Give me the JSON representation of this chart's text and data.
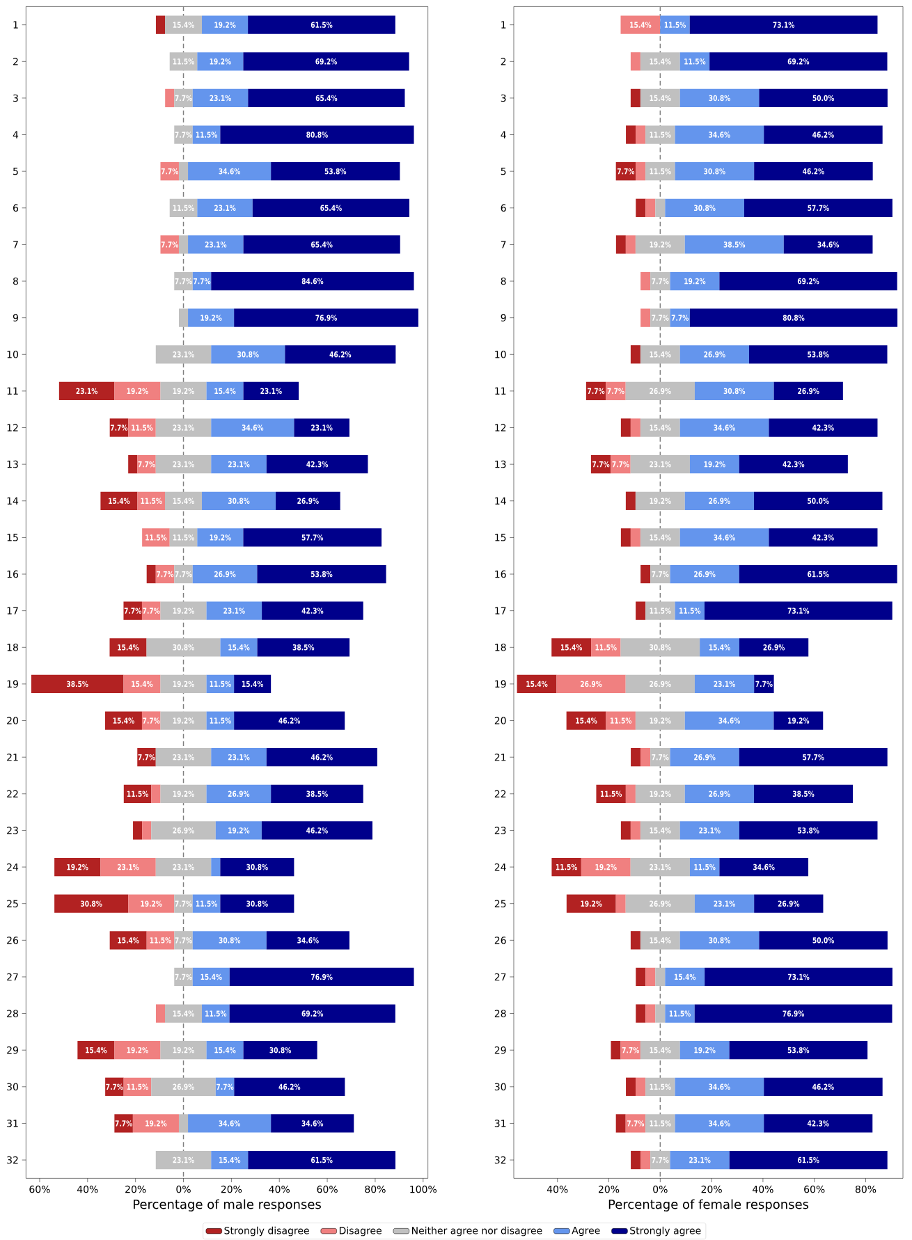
{
  "chart_data": [
    {
      "type": "bar",
      "orientation": "horizontal",
      "xlabel": "Percentage of male responses",
      "legend": "bottom",
      "categories": [
        "1",
        "2",
        "3",
        "4",
        "5",
        "6",
        "7",
        "8",
        "9",
        "10",
        "11",
        "12",
        "13",
        "14",
        "15",
        "16",
        "17",
        "18",
        "19",
        "20",
        "21",
        "22",
        "23",
        "24",
        "25",
        "26",
        "27",
        "28",
        "29",
        "30",
        "31",
        "32"
      ],
      "xlim": [
        -65.7,
        102
      ],
      "xticks": [
        {
          "value": -60,
          "label": "60%"
        },
        {
          "value": -40,
          "label": "40%"
        },
        {
          "value": -20,
          "label": "20%"
        },
        {
          "value": 0,
          "label": "0%"
        },
        {
          "value": 20,
          "label": "20%"
        },
        {
          "value": 40,
          "label": "40%"
        },
        {
          "value": 60,
          "label": "60%"
        },
        {
          "value": 80,
          "label": "80%"
        },
        {
          "value": 100,
          "label": "100%"
        }
      ],
      "ref_lines": [
        {
          "axis": "x",
          "value": 0,
          "color": "#808080",
          "line_style": "dashed"
        }
      ],
      "series": [
        {
          "name": "Strongly disagree",
          "color": "#b22222",
          "base": [
            -11.5,
            null,
            null,
            null,
            null,
            null,
            null,
            null,
            null,
            null,
            -51.9,
            -30.75,
            -23.05,
            -34.6,
            null,
            -15.35,
            -25,
            -30.8,
            -63.5,
            -32.7,
            -19.25,
            -24.9,
            -21.05,
            -53.85,
            -53.85,
            -30.75,
            null,
            null,
            -44.2,
            -32.65,
            -28.8,
            null
          ],
          "values": [
            3.8,
            0,
            0,
            0,
            0,
            0,
            0,
            0,
            0,
            0,
            23.1,
            7.7,
            3.8,
            15.4,
            0,
            3.8,
            7.7,
            15.4,
            38.5,
            15.4,
            7.7,
            11.5,
            3.8,
            19.2,
            30.8,
            15.4,
            0,
            0,
            15.4,
            7.7,
            7.7,
            0
          ],
          "value_labels": [
            null,
            null,
            null,
            null,
            null,
            null,
            null,
            null,
            null,
            null,
            "23.1%",
            "7.7%",
            null,
            "15.4%",
            null,
            null,
            "7.7%",
            "15.4%",
            "38.5%",
            "15.4%",
            "7.7%",
            "11.5%",
            null,
            "19.2%",
            "30.8%",
            "15.4%",
            null,
            null,
            "15.4%",
            "7.7%",
            "7.7%",
            null
          ]
        },
        {
          "name": "Disagree",
          "color": "#f08080",
          "base": [
            null,
            null,
            -7.65,
            null,
            -9.6,
            null,
            -9.6,
            null,
            null,
            null,
            -28.8,
            -23.05,
            -19.25,
            -19.2,
            -17.25,
            -11.55,
            -17.3,
            null,
            -25.0,
            -17.3,
            null,
            -13.4,
            -17.25,
            -34.65,
            -23.05,
            -15.35,
            null,
            -11.5,
            -28.8,
            -24.95,
            -21.1,
            null
          ],
          "values": [
            0,
            0,
            3.8,
            0,
            7.7,
            0,
            7.7,
            0,
            0,
            0,
            19.2,
            11.5,
            7.7,
            11.5,
            11.5,
            7.7,
            7.7,
            0,
            15.4,
            7.7,
            0,
            3.8,
            3.8,
            23.1,
            19.2,
            11.5,
            0,
            3.8,
            19.2,
            11.5,
            19.2,
            0
          ],
          "value_labels": [
            null,
            null,
            null,
            null,
            "7.7%",
            null,
            "7.7%",
            null,
            null,
            null,
            "19.2%",
            "11.5%",
            "7.7%",
            "11.5%",
            "11.5%",
            "7.7%",
            "7.7%",
            null,
            "15.4%",
            "7.7%",
            null,
            null,
            null,
            "23.1%",
            "19.2%",
            "11.5%",
            null,
            null,
            "19.2%",
            "11.5%",
            "19.2%",
            null
          ]
        },
        {
          "name": "Neither agree nor disagree",
          "color": "#c0c0c0",
          "base": [
            -7.7,
            -5.75,
            -3.85,
            -3.85,
            -1.9,
            -5.75,
            -1.9,
            -3.85,
            -1.9,
            -11.55,
            -9.6,
            -11.55,
            -11.55,
            -7.7,
            -5.75,
            -3.85,
            -9.6,
            -15.4,
            -9.6,
            -9.6,
            -11.55,
            -9.6,
            -13.45,
            -11.55,
            -3.85,
            -3.85,
            -3.85,
            -7.7,
            -9.6,
            -13.45,
            -1.9,
            -11.55
          ],
          "values": [
            15.4,
            11.5,
            7.7,
            7.7,
            3.8,
            11.5,
            3.8,
            7.7,
            3.8,
            23.1,
            19.2,
            23.1,
            23.1,
            15.4,
            11.5,
            7.7,
            19.2,
            30.8,
            19.2,
            19.2,
            23.1,
            19.2,
            26.9,
            23.1,
            7.7,
            7.7,
            7.7,
            15.4,
            19.2,
            26.9,
            3.8,
            23.1
          ],
          "value_labels": [
            "15.4%",
            "11.5%",
            "7.7%",
            "7.7%",
            null,
            "11.5%",
            null,
            "7.7%",
            null,
            "23.1%",
            "19.2%",
            "23.1%",
            "23.1%",
            "15.4%",
            "11.5%",
            "7.7%",
            "19.2%",
            "30.8%",
            "19.2%",
            "19.2%",
            "23.1%",
            "19.2%",
            "26.9%",
            "23.1%",
            "7.7%",
            "7.7%",
            "7.7%",
            "15.4%",
            "19.2%",
            "26.9%",
            null,
            "23.1%"
          ]
        },
        {
          "name": "Agree",
          "color": "#6495ed",
          "base": [
            7.7,
            5.75,
            3.85,
            3.85,
            1.9,
            5.75,
            1.9,
            3.85,
            1.9,
            11.55,
            9.6,
            11.55,
            11.55,
            7.7,
            5.75,
            3.85,
            9.6,
            15.4,
            9.6,
            9.6,
            11.55,
            9.6,
            13.45,
            11.55,
            3.85,
            3.85,
            3.85,
            7.7,
            9.6,
            13.45,
            1.9,
            11.55
          ],
          "values": [
            19.2,
            19.2,
            23.1,
            11.5,
            34.6,
            23.1,
            23.1,
            7.7,
            19.2,
            30.8,
            15.4,
            34.6,
            23.1,
            30.8,
            19.2,
            26.9,
            23.1,
            15.4,
            11.5,
            11.5,
            23.1,
            26.9,
            19.2,
            3.8,
            11.5,
            30.8,
            15.4,
            11.5,
            15.4,
            7.7,
            34.6,
            15.4
          ],
          "value_labels": [
            "19.2%",
            "19.2%",
            "23.1%",
            "11.5%",
            "34.6%",
            "23.1%",
            "23.1%",
            "7.7%",
            "19.2%",
            "30.8%",
            "15.4%",
            "34.6%",
            "23.1%",
            "30.8%",
            "19.2%",
            "26.9%",
            "23.1%",
            "15.4%",
            "11.5%",
            "11.5%",
            "23.1%",
            "26.9%",
            "19.2%",
            null,
            "11.5%",
            "30.8%",
            "15.4%",
            "11.5%",
            "15.4%",
            "7.7%",
            "34.6%",
            "15.4%"
          ]
        },
        {
          "name": "Strongly agree",
          "color": "#00008b",
          "base": [
            26.9,
            24.95,
            26.95,
            15.35,
            36.5,
            28.85,
            25.0,
            11.55,
            21.1,
            42.35,
            25.0,
            46.15,
            34.65,
            38.5,
            24.95,
            30.75,
            32.7,
            30.8,
            21.1,
            21.1,
            34.65,
            36.5,
            32.65,
            15.35,
            15.35,
            34.65,
            19.25,
            19.2,
            25.0,
            21.15,
            36.5,
            26.95
          ],
          "values": [
            61.5,
            69.2,
            65.4,
            80.8,
            53.8,
            65.4,
            65.4,
            84.6,
            76.9,
            46.2,
            23.1,
            23.1,
            42.3,
            26.9,
            57.7,
            53.8,
            42.3,
            38.5,
            15.4,
            46.2,
            46.2,
            38.5,
            46.2,
            30.8,
            30.8,
            34.6,
            76.9,
            69.2,
            30.8,
            46.2,
            34.6,
            61.5
          ],
          "value_labels": [
            "61.5%",
            "69.2%",
            "65.4%",
            "80.8%",
            "53.8%",
            "65.4%",
            "65.4%",
            "84.6%",
            "76.9%",
            "46.2%",
            "23.1%",
            "23.1%",
            "42.3%",
            "26.9%",
            "57.7%",
            "53.8%",
            "42.3%",
            "38.5%",
            "15.4%",
            "46.2%",
            "46.2%",
            "38.5%",
            "46.2%",
            "30.8%",
            "30.8%",
            "34.6%",
            "76.9%",
            "69.2%",
            "30.8%",
            "46.2%",
            "34.6%",
            "61.5%"
          ]
        }
      ]
    },
    {
      "type": "bar",
      "orientation": "horizontal",
      "xlabel": "Percentage of female responses",
      "categories": [
        "1",
        "2",
        "3",
        "4",
        "5",
        "6",
        "7",
        "8",
        "9",
        "10",
        "11",
        "12",
        "13",
        "14",
        "15",
        "16",
        "17",
        "18",
        "19",
        "20",
        "21",
        "22",
        "23",
        "24",
        "25",
        "26",
        "27",
        "28",
        "29",
        "30",
        "31",
        "32"
      ],
      "xlim": [
        -57,
        94.5
      ],
      "xticks": [
        {
          "value": -40,
          "label": "40%"
        },
        {
          "value": -20,
          "label": "20%"
        },
        {
          "value": 0,
          "label": "0%"
        },
        {
          "value": 20,
          "label": "20%"
        },
        {
          "value": 40,
          "label": "40%"
        },
        {
          "value": 60,
          "label": "60%"
        },
        {
          "value": 80,
          "label": "80%"
        }
      ],
      "ref_lines": [
        {
          "axis": "x",
          "value": 0,
          "color": "#808080",
          "line_style": "dashed"
        }
      ],
      "series": [
        {
          "color": "#b22222",
          "base": [
            null,
            null,
            -11.5,
            -13.35,
            -17.25,
            -9.5,
            -17.2,
            null,
            null,
            -11.5,
            -28.85,
            -15.3,
            -26.95,
            -13.4,
            -15.3,
            -7.65,
            -9.55,
            -42.3,
            -55.75,
            -36.5,
            -11.45,
            -24.9,
            -15.3,
            -42.25,
            -36.45,
            -11.5,
            -9.5,
            -9.5,
            -19.2,
            -13.35,
            -17.25,
            -11.45
          ],
          "values": [
            0,
            0,
            3.8,
            3.8,
            7.7,
            3.8,
            3.8,
            0,
            0,
            3.8,
            7.7,
            3.8,
            7.7,
            3.8,
            3.8,
            3.8,
            3.8,
            15.4,
            15.4,
            15.4,
            3.8,
            11.5,
            3.8,
            11.5,
            19.2,
            3.8,
            3.8,
            3.8,
            3.8,
            3.8,
            3.8,
            3.8
          ],
          "value_labels": [
            null,
            null,
            null,
            null,
            "7.7%",
            null,
            null,
            null,
            null,
            null,
            "7.7%",
            null,
            "7.7%",
            null,
            null,
            null,
            null,
            "15.4%",
            "15.4%",
            "15.4%",
            null,
            "11.5%",
            null,
            "11.5%",
            "19.2%",
            null,
            null,
            null,
            null,
            null,
            null,
            null
          ]
        },
        {
          "color": "#f08080",
          "base": [
            -15.4,
            -11.5,
            null,
            -9.55,
            -9.55,
            -5.7,
            -13.4,
            -7.65,
            -7.65,
            null,
            -21.15,
            -11.5,
            -19.25,
            null,
            -11.5,
            null,
            null,
            -26.9,
            -40.35,
            -21.1,
            -7.65,
            -13.4,
            -11.5,
            -30.75,
            -17.25,
            null,
            -5.7,
            -5.7,
            -15.4,
            -9.55,
            -13.45,
            -7.65
          ],
          "values": [
            15.4,
            3.8,
            0,
            3.8,
            3.8,
            3.8,
            3.8,
            3.8,
            3.8,
            0,
            7.7,
            3.8,
            7.7,
            0,
            3.8,
            0,
            0,
            11.5,
            26.9,
            11.5,
            3.8,
            3.8,
            3.8,
            19.2,
            3.8,
            0,
            3.8,
            3.8,
            7.7,
            3.8,
            7.7,
            3.8
          ],
          "value_labels": [
            "15.4%",
            null,
            null,
            null,
            null,
            null,
            null,
            null,
            null,
            null,
            "7.7%",
            null,
            "7.7%",
            null,
            null,
            null,
            null,
            "11.5%",
            "26.9%",
            "11.5%",
            null,
            null,
            null,
            "19.2%",
            null,
            null,
            null,
            null,
            "7.7%",
            null,
            "7.7%",
            null
          ]
        },
        {
          "color": "#c0c0c0",
          "base": [
            null,
            -7.7,
            -7.7,
            -5.75,
            -5.75,
            -1.9,
            -9.6,
            -3.85,
            -3.85,
            -7.7,
            -13.45,
            -7.7,
            -11.55,
            -9.6,
            -7.7,
            -3.85,
            -5.75,
            -15.4,
            -13.45,
            -9.6,
            -3.85,
            -9.6,
            -7.7,
            -11.55,
            -13.45,
            -7.7,
            -1.9,
            -1.9,
            -7.7,
            -5.75,
            -5.75,
            -3.85
          ],
          "values": [
            0,
            15.4,
            15.4,
            11.5,
            11.5,
            3.8,
            19.2,
            7.7,
            7.7,
            15.4,
            26.9,
            15.4,
            23.1,
            19.2,
            15.4,
            7.7,
            11.5,
            30.8,
            26.9,
            19.2,
            7.7,
            19.2,
            15.4,
            23.1,
            26.9,
            15.4,
            3.8,
            3.8,
            15.4,
            11.5,
            11.5,
            7.7
          ],
          "value_labels": [
            null,
            "15.4%",
            "15.4%",
            "11.5%",
            "11.5%",
            null,
            "19.2%",
            "7.7%",
            "7.7%",
            "15.4%",
            "26.9%",
            "15.4%",
            "23.1%",
            "19.2%",
            "15.4%",
            "7.7%",
            "11.5%",
            "30.8%",
            "26.9%",
            "19.2%",
            "7.7%",
            "19.2%",
            "15.4%",
            "23.1%",
            "26.9%",
            "15.4%",
            null,
            null,
            "15.4%",
            "11.5%",
            "11.5%",
            "7.7%"
          ]
        },
        {
          "color": "#6495ed",
          "base": [
            0,
            7.7,
            7.7,
            5.75,
            5.75,
            1.9,
            9.6,
            3.85,
            3.85,
            7.7,
            13.45,
            7.7,
            11.55,
            9.6,
            7.7,
            3.85,
            5.75,
            15.4,
            13.45,
            9.6,
            3.85,
            9.6,
            7.7,
            11.55,
            13.45,
            7.7,
            1.9,
            1.9,
            7.7,
            5.75,
            5.75,
            3.85
          ],
          "values": [
            11.5,
            11.5,
            30.8,
            34.6,
            30.8,
            30.8,
            38.5,
            19.2,
            7.7,
            26.9,
            30.8,
            34.6,
            19.2,
            26.9,
            34.6,
            26.9,
            11.5,
            15.4,
            23.1,
            34.6,
            26.9,
            26.9,
            23.1,
            11.5,
            23.1,
            30.8,
            15.4,
            11.5,
            19.2,
            34.6,
            34.6,
            23.1
          ],
          "value_labels": [
            "11.5%",
            "11.5%",
            "30.8%",
            "34.6%",
            "30.8%",
            "30.8%",
            "38.5%",
            "19.2%",
            "7.7%",
            "26.9%",
            "30.8%",
            "34.6%",
            "19.2%",
            "26.9%",
            "34.6%",
            "26.9%",
            "11.5%",
            "15.4%",
            "23.1%",
            "34.6%",
            "26.9%",
            "26.9%",
            "23.1%",
            "11.5%",
            "23.1%",
            "30.8%",
            "15.4%",
            "11.5%",
            "19.2%",
            "34.6%",
            "34.6%",
            "23.1%"
          ]
        },
        {
          "color": "#00008b",
          "base": [
            11.5,
            19.2,
            38.5,
            40.35,
            36.55,
            32.7,
            48.1,
            23.05,
            11.55,
            34.6,
            44.25,
            42.3,
            30.75,
            36.5,
            42.3,
            30.75,
            17.25,
            30.8,
            36.55,
            44.2,
            30.75,
            36.5,
            30.8,
            23.05,
            36.55,
            38.5,
            17.3,
            13.4,
            26.9,
            40.35,
            40.35,
            26.95
          ],
          "values": [
            73.1,
            69.2,
            50.0,
            46.2,
            46.2,
            57.7,
            34.6,
            69.2,
            80.8,
            53.8,
            26.9,
            42.3,
            42.3,
            50.0,
            42.3,
            61.5,
            73.1,
            26.9,
            7.7,
            19.2,
            57.7,
            38.5,
            53.8,
            34.6,
            26.9,
            50.0,
            73.1,
            76.9,
            53.8,
            46.2,
            42.3,
            61.5
          ],
          "value_labels": [
            "73.1%",
            "69.2%",
            "50.0%",
            "46.2%",
            "46.2%",
            "57.7%",
            "34.6%",
            "69.2%",
            "80.8%",
            "53.8%",
            "26.9%",
            "42.3%",
            "42.3%",
            "50.0%",
            "42.3%",
            "61.5%",
            "73.1%",
            "26.9%",
            "7.7%",
            "19.2%",
            "57.7%",
            "38.5%",
            "53.8%",
            "34.6%",
            "26.9%",
            "50.0%",
            "73.1%",
            "76.9%",
            "53.8%",
            "46.2%",
            "42.3%",
            "61.5%"
          ]
        }
      ]
    }
  ]
}
